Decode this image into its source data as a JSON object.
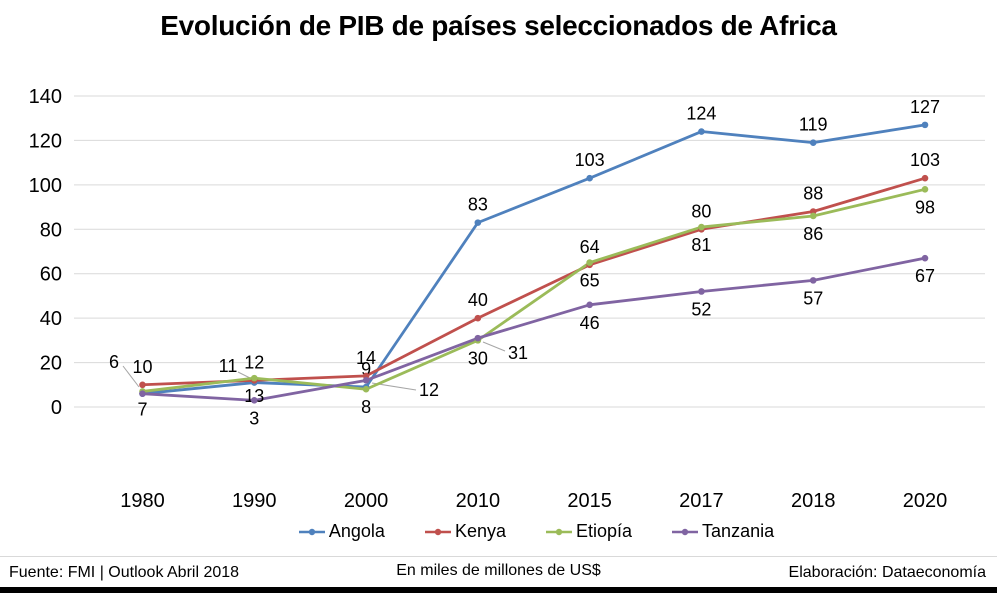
{
  "title": "Evolución de PIB de países seleccionados de Africa",
  "chart_data": {
    "type": "line",
    "categories": [
      "1980",
      "1990",
      "2000",
      "2010",
      "2015",
      "2017",
      "2018",
      "2020"
    ],
    "series": [
      {
        "name": "Angola",
        "color": "#4F81BD",
        "values": [
          6,
          11,
          9,
          83,
          103,
          124,
          119,
          127
        ],
        "labels": [
          "6",
          "11",
          "9",
          "83",
          "103",
          "124",
          "119",
          "127"
        ],
        "label_pos": [
          "offset",
          "offset",
          "above",
          "above",
          "above",
          "above",
          "above",
          "above"
        ]
      },
      {
        "name": "Kenya",
        "color": "#C0504D",
        "values": [
          10,
          12,
          14,
          40,
          64,
          80,
          88,
          103
        ],
        "labels": [
          "10",
          "12",
          "14",
          "40",
          "64",
          "80",
          "88",
          "103"
        ],
        "label_pos": [
          "above",
          "above",
          "above",
          "above",
          "above",
          "above",
          "above",
          "above"
        ]
      },
      {
        "name": "Etiopía",
        "color": "#9BBB59",
        "values": [
          7,
          13,
          8,
          30,
          65,
          81,
          86,
          98
        ],
        "labels": [
          "7",
          "13",
          "8",
          "30",
          "65",
          "81",
          "86",
          "98"
        ],
        "label_pos": [
          "below",
          "below",
          "below",
          "below",
          "below",
          "below",
          "below",
          "below"
        ]
      },
      {
        "name": "Tanzania",
        "color": "#8064A2",
        "values": [
          6,
          3,
          12,
          31,
          46,
          52,
          57,
          67
        ],
        "labels": [
          "",
          "3",
          "12",
          "31",
          "46",
          "52",
          "57",
          "67"
        ],
        "label_pos": [
          "none",
          "below",
          "offset",
          "offset",
          "below",
          "below",
          "below",
          "below"
        ]
      }
    ],
    "ylim": [
      0,
      140
    ],
    "ytick_step": 20,
    "yticks": [
      "0",
      "20",
      "40",
      "60",
      "80",
      "100",
      "120",
      "140"
    ],
    "xlabel": "",
    "ylabel": "",
    "grid": "horizontal",
    "gridline_color": "#D9D9D9",
    "leader_line_color": "#A6A6A6",
    "legend_position": "bottom"
  },
  "footer": {
    "source": "Fuente: FMI | Outlook Abril 2018",
    "units": "En miles de millones de US$",
    "credit": "Elaboración: Dataeconomía"
  }
}
